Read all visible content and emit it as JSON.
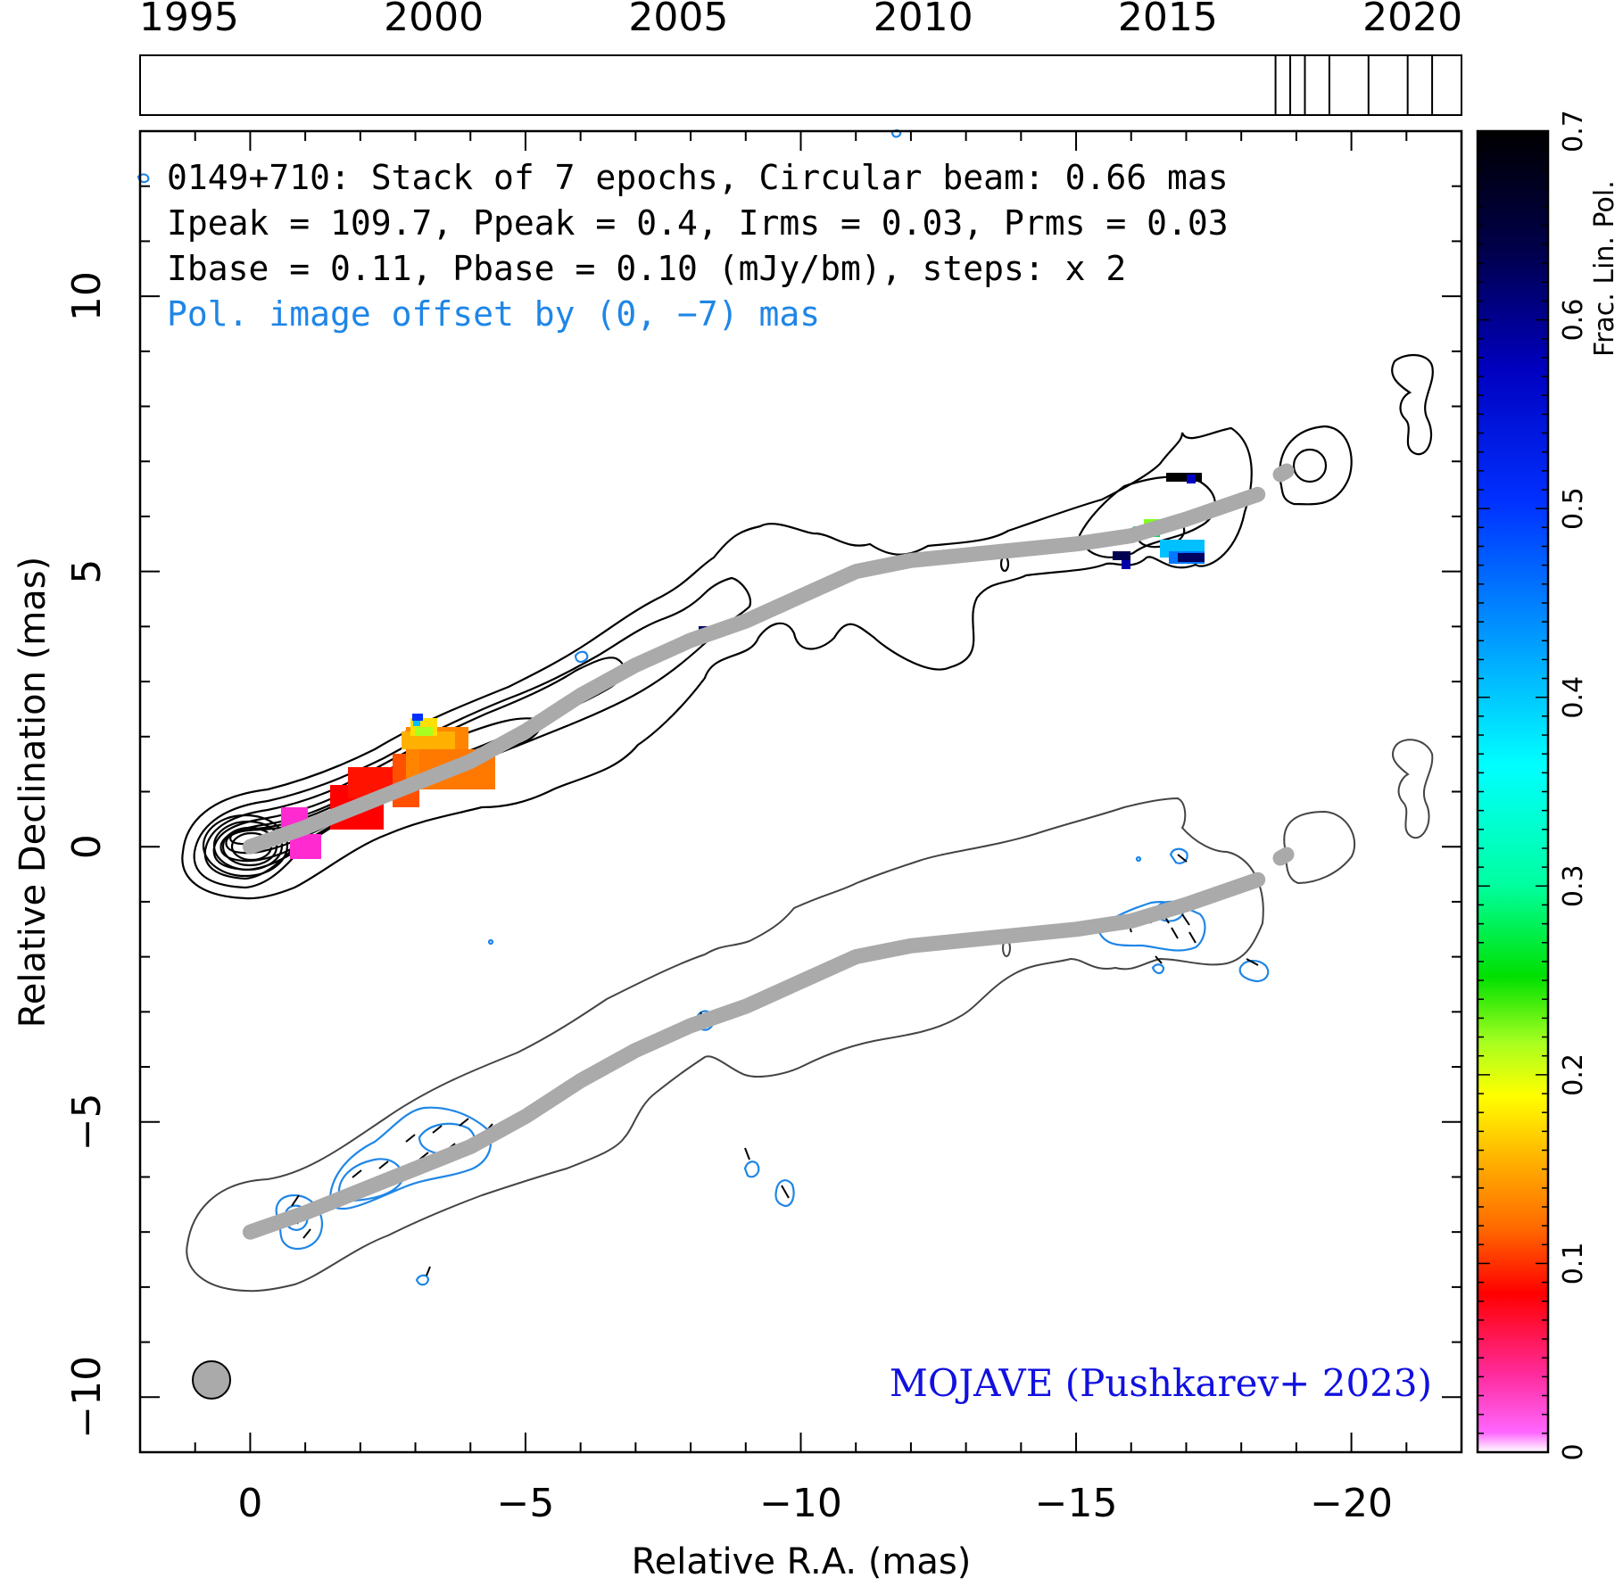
{
  "chart_data": {
    "type": "contour",
    "source": "0149+710",
    "info_lines": [
      "0149+710: Stack of 7 epochs, Circular beam: 0.66 mas",
      "Ipeak = 109.7, Ppeak = 0.4, Irms = 0.03, Prms = 0.03",
      "Ibase = 0.11, Pbase = 0.10 (mJy/bm), steps: x 2"
    ],
    "offset_note": "Pol. image offset by (0, −7) mas",
    "credit": "MOJAVE (Pushkarev+ 2023)",
    "xlabel": "Relative R.A. (mas)",
    "ylabel": "Relative Declination (mas)",
    "xlim": [
      2,
      -22
    ],
    "ylim": [
      -11,
      13
    ],
    "x_ticks": [
      0,
      -5,
      -10,
      -15,
      -20
    ],
    "x_tick_labels": [
      "0",
      "−5",
      "−10",
      "−15",
      "−20"
    ],
    "y_ticks": [
      -10,
      -5,
      0,
      5,
      10
    ],
    "y_tick_labels": [
      "−10",
      "−5",
      "0",
      "5",
      "10"
    ],
    "timeline": {
      "range": [
        1994,
        2021
      ],
      "tick_years": [
        1995,
        2000,
        2005,
        2010,
        2015,
        2020
      ],
      "tick_labels": [
        "1995",
        "2000",
        "2005",
        "2010",
        "2015",
        "2020"
      ],
      "epochs": [
        2017.2,
        2017.5,
        2017.8,
        2018.3,
        2019.1,
        2019.9,
        2020.4
      ]
    },
    "beam_mas": 0.66,
    "ridge_line": {
      "x": [
        0,
        -1,
        -2,
        -3,
        -4,
        -5,
        -6,
        -7,
        -8,
        -9,
        -10,
        -11,
        -12,
        -13,
        -14,
        -15,
        -16,
        -17,
        -18.3
      ],
      "y": [
        0,
        0.35,
        0.75,
        1.15,
        1.55,
        2.1,
        2.75,
        3.3,
        3.75,
        4.1,
        4.55,
        5.0,
        5.2,
        5.3,
        5.4,
        5.5,
        5.65,
        5.95,
        6.4
      ],
      "color": "#aaaaaa"
    },
    "colorbar": {
      "label": "Frac. Lin. Pol.",
      "range": [
        0,
        0.7
      ],
      "ticks": [
        0,
        0.1,
        0.2,
        0.3,
        0.4,
        0.5,
        0.6,
        0.7
      ],
      "tick_labels": [
        "0",
        "0.1",
        "0.2",
        "0.3",
        "0.4",
        "0.5",
        "0.6",
        "0.7"
      ]
    },
    "colors": {
      "info": "#000000",
      "offset_note": "#1f86e6",
      "credit": "#1010e0",
      "pol_contour": "#1f86e6",
      "total_contour_offset": "#444444"
    }
  }
}
